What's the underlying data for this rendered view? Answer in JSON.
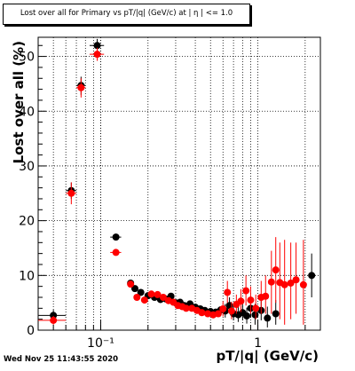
{
  "title": "Lost over all for Primary vs pT/|q| (GeV/c) at | η | <= 1.0",
  "timestamp": "Wed Nov 25 11:43:55 2020",
  "chart_data": {
    "type": "scatter",
    "title": "Lost over all for Primary vs pT/|q| (GeV/c) at | η | <= 1.0",
    "xlabel": "pT/|q| (GeV/c)",
    "ylabel": "Lost over all (%)",
    "xscale": "log",
    "xlim": [
      0.04,
      2.5
    ],
    "ylim": [
      0,
      53.5
    ],
    "yticks": [
      0,
      10,
      20,
      30,
      40,
      50
    ],
    "ytick_labels": [
      "0",
      "10",
      "20",
      "30",
      "40",
      "50"
    ],
    "xticks": [
      0.1,
      1
    ],
    "xtick_labels": [
      "10⁻¹",
      "1"
    ],
    "grid": true,
    "colors": {
      "series_black": "#000000",
      "series_red": "#ff0000"
    },
    "series": [
      {
        "color": "#000000",
        "points": [
          {
            "x": 0.05,
            "y": 2.7,
            "ylo": 1.7,
            "yhi": 3.7,
            "xlo": 0.04,
            "xhi": 0.06
          },
          {
            "x": 0.065,
            "y": 25.5,
            "ylo": 24.0,
            "yhi": 27.0,
            "xlo": 0.06,
            "xhi": 0.07
          },
          {
            "x": 0.075,
            "y": 44.7,
            "ylo": 43.0,
            "yhi": 46.3,
            "xlo": 0.07,
            "xhi": 0.08
          },
          {
            "x": 0.095,
            "y": 52.0,
            "ylo": 50.8,
            "yhi": 53.2,
            "xlo": 0.085,
            "xhi": 0.105
          },
          {
            "x": 0.125,
            "y": 17.0,
            "ylo": 16.4,
            "yhi": 17.6,
            "xlo": 0.115,
            "xhi": 0.135
          },
          {
            "x": 0.155,
            "y": 8.6,
            "ylo": 8.1,
            "yhi": 9.1
          },
          {
            "x": 0.165,
            "y": 7.6
          },
          {
            "x": 0.18,
            "y": 6.9
          },
          {
            "x": 0.2,
            "y": 6.3
          },
          {
            "x": 0.22,
            "y": 6.0
          },
          {
            "x": 0.24,
            "y": 5.6
          },
          {
            "x": 0.26,
            "y": 5.7
          },
          {
            "x": 0.28,
            "y": 6.2
          },
          {
            "x": 0.3,
            "y": 5.0
          },
          {
            "x": 0.32,
            "y": 5.1
          },
          {
            "x": 0.34,
            "y": 4.5
          },
          {
            "x": 0.37,
            "y": 4.8
          },
          {
            "x": 0.4,
            "y": 4.2
          },
          {
            "x": 0.43,
            "y": 3.9
          },
          {
            "x": 0.46,
            "y": 3.6
          },
          {
            "x": 0.5,
            "y": 3.4
          },
          {
            "x": 0.54,
            "y": 3.3
          },
          {
            "x": 0.58,
            "y": 3.7
          },
          {
            "x": 0.62,
            "y": 3.5,
            "ylo": 2.3,
            "yhi": 4.8
          },
          {
            "x": 0.66,
            "y": 4.5,
            "ylo": 3.0,
            "yhi": 6.0
          },
          {
            "x": 0.7,
            "y": 3.0,
            "ylo": 1.8,
            "yhi": 4.3
          },
          {
            "x": 0.75,
            "y": 2.8,
            "ylo": 1.5,
            "yhi": 4.2
          },
          {
            "x": 0.8,
            "y": 3.2,
            "ylo": 1.8,
            "yhi": 4.7
          },
          {
            "x": 0.85,
            "y": 2.6,
            "ylo": 1.2,
            "yhi": 4.1
          },
          {
            "x": 0.9,
            "y": 4.0,
            "ylo": 2.3,
            "yhi": 5.8
          },
          {
            "x": 0.96,
            "y": 2.8,
            "ylo": 1.0,
            "yhi": 4.8
          },
          {
            "x": 1.05,
            "y": 3.6,
            "ylo": 1.8,
            "yhi": 5.6
          },
          {
            "x": 1.15,
            "y": 2.2,
            "ylo": 0.5,
            "yhi": 4.3
          },
          {
            "x": 1.3,
            "y": 3.0,
            "ylo": 1.0,
            "yhi": 5.5
          },
          {
            "x": 2.2,
            "y": 10.0,
            "ylo": 6.0,
            "yhi": 14.0
          }
        ]
      },
      {
        "color": "#ff0000",
        "points": [
          {
            "x": 0.05,
            "y": 1.8,
            "ylo": 1.0,
            "yhi": 2.6,
            "xlo": 0.04,
            "xhi": 0.06
          },
          {
            "x": 0.065,
            "y": 25.0,
            "ylo": 23.0,
            "yhi": 27.0,
            "xlo": 0.06,
            "xhi": 0.07
          },
          {
            "x": 0.075,
            "y": 44.3,
            "ylo": 42.5,
            "yhi": 46.0,
            "xlo": 0.07,
            "xhi": 0.08
          },
          {
            "x": 0.095,
            "y": 50.4,
            "ylo": 49.2,
            "yhi": 51.6,
            "xlo": 0.085,
            "xhi": 0.105
          },
          {
            "x": 0.125,
            "y": 14.2,
            "ylo": 13.7,
            "yhi": 14.7,
            "xlo": 0.115,
            "xhi": 0.135
          },
          {
            "x": 0.155,
            "y": 8.4
          },
          {
            "x": 0.17,
            "y": 6.0
          },
          {
            "x": 0.19,
            "y": 5.5
          },
          {
            "x": 0.21,
            "y": 6.6
          },
          {
            "x": 0.23,
            "y": 6.5
          },
          {
            "x": 0.25,
            "y": 6.0
          },
          {
            "x": 0.27,
            "y": 5.4
          },
          {
            "x": 0.29,
            "y": 5.1
          },
          {
            "x": 0.31,
            "y": 4.5
          },
          {
            "x": 0.33,
            "y": 4.3
          },
          {
            "x": 0.35,
            "y": 4.0
          },
          {
            "x": 0.38,
            "y": 4.0
          },
          {
            "x": 0.41,
            "y": 3.6
          },
          {
            "x": 0.44,
            "y": 3.2
          },
          {
            "x": 0.48,
            "y": 3.0
          },
          {
            "x": 0.52,
            "y": 2.8
          },
          {
            "x": 0.56,
            "y": 3.0
          },
          {
            "x": 0.6,
            "y": 3.9,
            "ylo": 2.5,
            "yhi": 5.3
          },
          {
            "x": 0.64,
            "y": 6.9,
            "ylo": 5.0,
            "yhi": 9.0
          },
          {
            "x": 0.68,
            "y": 3.5,
            "ylo": 2.0,
            "yhi": 5.2
          },
          {
            "x": 0.73,
            "y": 4.7,
            "ylo": 3.0,
            "yhi": 6.5
          },
          {
            "x": 0.78,
            "y": 5.3,
            "ylo": 3.3,
            "yhi": 7.5
          },
          {
            "x": 0.84,
            "y": 7.2,
            "ylo": 4.5,
            "yhi": 10.0
          },
          {
            "x": 0.9,
            "y": 5.5,
            "ylo": 3.0,
            "yhi": 8.0
          },
          {
            "x": 0.97,
            "y": 4.0,
            "ylo": 2.0,
            "yhi": 6.5
          },
          {
            "x": 1.05,
            "y": 6.0,
            "ylo": 3.0,
            "yhi": 9.0
          },
          {
            "x": 1.12,
            "y": 6.2,
            "ylo": 3.0,
            "yhi": 10.0
          },
          {
            "x": 1.22,
            "y": 8.8,
            "ylo": 3.0,
            "yhi": 14.5
          },
          {
            "x": 1.3,
            "y": 11.0,
            "ylo": 5.0,
            "yhi": 17.0
          },
          {
            "x": 1.38,
            "y": 8.7,
            "ylo": 2.0,
            "yhi": 16.0
          },
          {
            "x": 1.48,
            "y": 8.3,
            "ylo": 1.0,
            "yhi": 16.5
          },
          {
            "x": 1.62,
            "y": 8.6,
            "ylo": 2.0,
            "yhi": 16.0
          },
          {
            "x": 1.75,
            "y": 9.2,
            "ylo": 3.0,
            "yhi": 16.0
          },
          {
            "x": 1.95,
            "y": 8.3,
            "ylo": 1.0,
            "yhi": 16.5
          }
        ]
      }
    ]
  }
}
